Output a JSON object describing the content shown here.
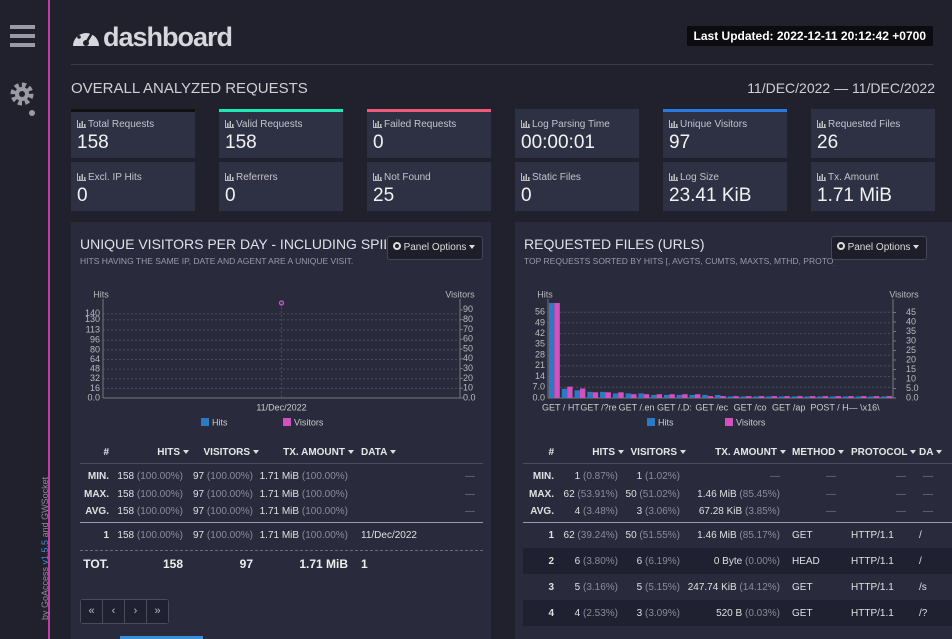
{
  "sidebar": {
    "credit": [
      "by GoAccess",
      "v1.5.5",
      "and GWSocket"
    ]
  },
  "header": {
    "title": "dashboard",
    "last_updated": "Last Updated: 2022-12-11 20:12:42 +0700"
  },
  "overall": {
    "title": "OVERALL ANALYZED REQUESTS",
    "date_range": "11/DEC/2022 — 11/DEC/2022",
    "cards": [
      {
        "label": "Total Requests",
        "value": "158",
        "accent": "#111111"
      },
      {
        "label": "Valid Requests",
        "value": "158",
        "accent": "#1de9b6"
      },
      {
        "label": "Failed Requests",
        "value": "0",
        "accent": "#ef5a7a"
      },
      {
        "label": "Log Parsing Time",
        "value": "00:00:01"
      },
      {
        "label": "Unique Visitors",
        "value": "97",
        "accent": "#2a7ae2"
      },
      {
        "label": "Requested Files",
        "value": "26"
      },
      {
        "label": "Excl. IP Hits",
        "value": "0"
      },
      {
        "label": "Referrers",
        "value": "0"
      },
      {
        "label": "Not Found",
        "value": "25"
      },
      {
        "label": "Static Files",
        "value": "0"
      },
      {
        "label": "Log Size",
        "value": "23.41 KiB"
      },
      {
        "label": "Tx. Amount",
        "value": "1.71 MiB"
      }
    ]
  },
  "panels": [
    {
      "title": "UNIQUE VISITORS PER DAY - INCLUDING SPIDERS",
      "subtitle": "HITS HAVING THE SAME IP, DATE AND AGENT ARE A UNIQUE VISIT.",
      "button": "Panel Options",
      "chart": {
        "type": "line",
        "y_label": "Hits",
        "y2_label": "Visitors",
        "categories": [
          "11/Dec/2022"
        ],
        "series": [
          {
            "name": "Hits",
            "color": "#2b7bc4",
            "values": [
              158
            ]
          },
          {
            "name": "Visitors",
            "color": "#d44fbf",
            "values": [
              97
            ],
            "axis": "y2"
          }
        ],
        "ylim": [
          0,
          158
        ],
        "yticks": [
          {
            "value": 0,
            "label": "0.0"
          },
          16,
          32,
          48,
          64,
          80,
          96,
          113,
          130,
          140
        ],
        "y2lim": [
          0,
          97
        ],
        "y2ticks": [
          {
            "value": 0,
            "label": "0.0"
          },
          10,
          20,
          30,
          40,
          50,
          60,
          70,
          80,
          90
        ],
        "grid": true
      },
      "table": {
        "columns": [
          "#",
          "HITS",
          "VISITORS",
          "TX. AMOUNT",
          "DATA"
        ],
        "summary": [
          {
            "label": "MIN.",
            "cells": [
              {
                "v": "158",
                "p": "(100.00%)"
              },
              {
                "v": "97",
                "p": "(100.00%)"
              },
              {
                "v": "1.71 MiB",
                "p": "(100.00%)"
              },
              "—"
            ]
          },
          {
            "label": "MAX.",
            "cells": [
              {
                "v": "158",
                "p": "(100.00%)"
              },
              {
                "v": "97",
                "p": "(100.00%)"
              },
              {
                "v": "1.71 MiB",
                "p": "(100.00%)"
              },
              "—"
            ]
          },
          {
            "label": "AVG.",
            "cells": [
              {
                "v": "158",
                "p": "(100.00%)"
              },
              {
                "v": "97",
                "p": "(100.00%)"
              },
              {
                "v": "1.71 MiB",
                "p": "(100.00%)"
              },
              "—"
            ]
          }
        ],
        "rows": [
          {
            "label": "1",
            "cells": [
              {
                "v": "158",
                "p": "(100.00%)"
              },
              {
                "v": "97",
                "p": "(100.00%)"
              },
              {
                "v": "1.71 MiB",
                "p": "(100.00%)"
              },
              "11/Dec/2022"
            ]
          }
        ],
        "total": {
          "label": "TOT.",
          "cells": [
            "158",
            "97",
            "1.71 MiB",
            "1"
          ]
        },
        "pager": [
          "«",
          "‹",
          "›",
          "»"
        ]
      }
    },
    {
      "title": "REQUESTED FILES (URLS)",
      "subtitle": "TOP REQUESTS SORTED BY HITS [, AVGTS, CUMTS, MAXTS, MTHD, PROTO]",
      "button": "Panel Options",
      "chart": {
        "type": "bar",
        "y_label": "Hits",
        "y2_label": "Visitors",
        "categories": [
          "GET / HT",
          null,
          null,
          "GET /?re",
          null,
          null,
          "GET /.en",
          null,
          null,
          "GET /.D:",
          null,
          null,
          "GET /ec",
          null,
          null,
          "GET /co",
          null,
          null,
          "GET /ap",
          null,
          null,
          "POST / H",
          null,
          null,
          "— \\x16\\",
          null,
          null
        ],
        "series": [
          {
            "name": "Hits",
            "color": "#2b7bc4",
            "values": [
              62,
              6,
              5,
              4,
              4,
              3,
              3,
              3,
              2,
              2,
              2,
              2,
              2,
              2,
              1,
              1,
              1,
              1,
              1,
              1,
              1,
              1,
              1,
              1,
              1,
              1,
              1
            ]
          },
          {
            "name": "Visitors",
            "color": "#d44fbf",
            "values": [
              50,
              6,
              5,
              3,
              3,
              3,
              2,
              2,
              2,
              2,
              2,
              2,
              1,
              1,
              1,
              1,
              1,
              1,
              1,
              1,
              1,
              1,
              1,
              1,
              1,
              1,
              1
            ],
            "axis": "y2"
          }
        ],
        "ylim": [
          0,
          62
        ],
        "yticks": [
          {
            "value": 0,
            "label": "0.0"
          },
          {
            "value": 7,
            "label": "7.0"
          },
          14,
          21,
          28,
          35,
          42,
          49,
          56
        ],
        "y2lim": [
          0,
          50
        ],
        "y2ticks": [
          {
            "value": 0,
            "label": "0.0"
          },
          {
            "value": 5,
            "label": "5.0"
          },
          10,
          15,
          20,
          25,
          30,
          35,
          40,
          45
        ],
        "grid": true
      },
      "table": {
        "columns": [
          "#",
          "HITS",
          "VISITORS",
          "TX. AMOUNT",
          "METHOD",
          "PROTOCOL",
          "DA"
        ],
        "summary": [
          {
            "label": "MIN.",
            "cells": [
              {
                "v": "1",
                "p": "(0.87%)"
              },
              {
                "v": "1",
                "p": "(1.02%)"
              },
              "—",
              "—",
              "—",
              "—"
            ]
          },
          {
            "label": "MAX.",
            "cells": [
              {
                "v": "62",
                "p": "(53.91%)"
              },
              {
                "v": "50",
                "p": "(51.02%)"
              },
              {
                "v": "1.46 MiB",
                "p": "(85.45%)"
              },
              "—",
              "—",
              "—"
            ]
          },
          {
            "label": "AVG.",
            "cells": [
              {
                "v": "4",
                "p": "(3.48%)"
              },
              {
                "v": "3",
                "p": "(3.06%)"
              },
              {
                "v": "67.28 KiB",
                "p": "(3.85%)"
              },
              "—",
              "—",
              "—"
            ]
          }
        ],
        "rows": [
          {
            "label": "1",
            "cells": [
              {
                "v": "62",
                "p": "(39.24%)"
              },
              {
                "v": "50",
                "p": "(51.55%)"
              },
              {
                "v": "1.46 MiB",
                "p": "(85.17%)"
              },
              "GET",
              "HTTP/1.1",
              "/"
            ]
          },
          {
            "label": "2",
            "cells": [
              {
                "v": "6",
                "p": "(3.80%)"
              },
              {
                "v": "6",
                "p": "(6.19%)"
              },
              {
                "v": "0 Byte",
                "p": "(0.00%)"
              },
              "HEAD",
              "HTTP/1.1",
              "/"
            ]
          },
          {
            "label": "3",
            "cells": [
              {
                "v": "5",
                "p": "(3.16%)"
              },
              {
                "v": "5",
                "p": "(5.15%)"
              },
              {
                "v": "247.74 KiB",
                "p": "(14.12%)"
              },
              "GET",
              "HTTP/1.1",
              "/s"
            ]
          },
          {
            "label": "4",
            "cells": [
              {
                "v": "4",
                "p": "(2.53%)"
              },
              {
                "v": "3",
                "p": "(3.09%)"
              },
              {
                "v": "520 B",
                "p": "(0.03%)"
              },
              "GET",
              "HTTP/1.1",
              "/?"
            ]
          }
        ]
      }
    }
  ]
}
